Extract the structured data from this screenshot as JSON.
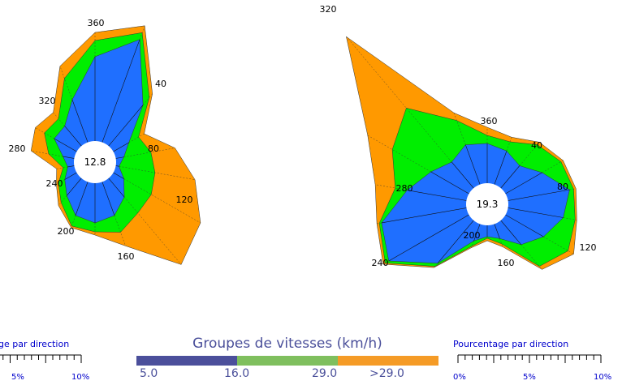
{
  "legend": {
    "title": "Groupes de vitesses (km/h)",
    "bins": [
      {
        "label": "5.0",
        "color": "#4b4f9b"
      },
      {
        "label": "16.0",
        "color": "#7fbf5e"
      },
      {
        "label": "29.0",
        "color": "#f59b26"
      }
    ],
    "last_label": ">29.0"
  },
  "percent_scale": {
    "title": "Pourcentage par direction",
    "ticks": [
      "0%",
      "5%",
      "10%"
    ],
    "left_ticks": [
      "5%",
      "10%"
    ],
    "left_title": "ge par direction"
  },
  "chart_data": [
    {
      "type": "radar",
      "name": "rose-1",
      "center_value": "12.8",
      "direction_labels": [
        "360",
        "40",
        "80",
        "120",
        "160",
        "200",
        "240",
        "280",
        "320"
      ],
      "directions_deg": [
        0,
        20,
        40,
        60,
        80,
        100,
        120,
        140,
        160,
        180,
        200,
        220,
        240,
        260,
        280,
        300,
        320,
        340
      ],
      "series": [
        {
          "name": "5.0-16.0",
          "color": "#1f6fff",
          "radius": [
            130,
            161,
            92,
            48,
            36,
            30,
            41,
            56,
            70,
            75,
            70,
            54,
            43,
            34,
            40,
            58,
            58,
            82
          ]
        },
        {
          "name": "16.0-29.0",
          "color": "#00ee00",
          "radius": [
            150,
            170,
            104,
            62,
            70,
            75,
            80,
            82,
            92,
            86,
            84,
            65,
            52,
            40,
            58,
            72,
            70,
            110
          ]
        },
        {
          "name": ">29.0",
          "color": "#ff9900",
          "radius": [
            160,
            179,
            110,
            70,
            100,
            125,
            150,
            165,
            110,
            90,
            86,
            70,
            55,
            48,
            80,
            85,
            80,
            126
          ]
        }
      ]
    },
    {
      "type": "radar",
      "name": "rose-2",
      "center_value": "19.3",
      "direction_labels": [
        "360",
        "40",
        "80",
        "120",
        "160",
        "200",
        "240",
        "280",
        "320"
      ],
      "directions_deg": [
        0,
        20,
        40,
        60,
        80,
        100,
        120,
        140,
        160,
        180,
        200,
        220,
        240,
        260,
        280,
        300,
        320,
        340
      ],
      "series": [
        {
          "name": "5.0-16.0",
          "color": "#1f6fff",
          "radius": [
            75,
            70,
            62,
            78,
            103,
            95,
            80,
            65,
            45,
            40,
            48,
            95,
            140,
            132,
            100,
            80,
            68,
            78
          ]
        },
        {
          "name": "16.0-29.0",
          "color": "#00ee00",
          "radius": [
            85,
            82,
            96,
            105,
            108,
            110,
            115,
            100,
            52,
            42,
            55,
            100,
            145,
            135,
            115,
            135,
            155,
            110
          ]
        },
        {
          "name": ">29.0",
          "color": "#ff9900",
          "radius": [
            95,
            88,
            100,
            108,
            111,
            112,
            123,
            105,
            56,
            45,
            57,
            102,
            148,
            138,
            140,
            170,
            270,
            120
          ]
        }
      ]
    }
  ]
}
